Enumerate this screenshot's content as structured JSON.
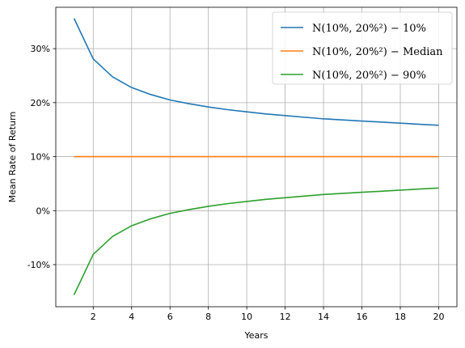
{
  "chart_data": {
    "type": "line",
    "title": "",
    "xlabel": "Years",
    "ylabel": "Mean Rate of Return",
    "xlim": [
      0.05,
      20.95
    ],
    "ylim": [
      -0.1779,
      0.3766
    ],
    "x_ticks": [
      2,
      4,
      6,
      8,
      10,
      12,
      14,
      16,
      18,
      20
    ],
    "x_tick_labels": [
      "2",
      "4",
      "6",
      "8",
      "10",
      "12",
      "14",
      "16",
      "18",
      "20"
    ],
    "y_ticks": [
      -0.1,
      0.0,
      0.1,
      0.2,
      0.3
    ],
    "y_tick_labels": [
      "-10%",
      "0%",
      "10%",
      "20%",
      "30%"
    ],
    "grid": true,
    "legend_position": "top-right",
    "x": [
      1,
      2,
      3,
      4,
      5,
      6,
      7,
      8,
      9,
      10,
      11,
      12,
      13,
      14,
      15,
      16,
      17,
      18,
      19,
      20
    ],
    "series": [
      {
        "name": "N(10%, 20%²) − 10%",
        "color": "#1f77b4",
        "values": [
          0.356,
          0.281,
          0.248,
          0.228,
          0.215,
          0.205,
          0.198,
          0.192,
          0.187,
          0.183,
          0.179,
          0.176,
          0.173,
          0.17,
          0.168,
          0.166,
          0.164,
          0.162,
          0.16,
          0.158
        ]
      },
      {
        "name": "N(10%, 20%²) − Median",
        "color": "#ff7f0e",
        "values": [
          0.1,
          0.1,
          0.1,
          0.1,
          0.1,
          0.1,
          0.1,
          0.1,
          0.1,
          0.1,
          0.1,
          0.1,
          0.1,
          0.1,
          0.1,
          0.1,
          0.1,
          0.1,
          0.1,
          0.1
        ]
      },
      {
        "name": "N(10%, 20%²) − 90%",
        "color": "#2ca02c",
        "values": [
          -0.156,
          -0.081,
          -0.048,
          -0.028,
          -0.015,
          -0.005,
          0.002,
          0.008,
          0.013,
          0.017,
          0.021,
          0.024,
          0.027,
          0.03,
          0.032,
          0.034,
          0.036,
          0.038,
          0.04,
          0.042
        ]
      }
    ]
  }
}
